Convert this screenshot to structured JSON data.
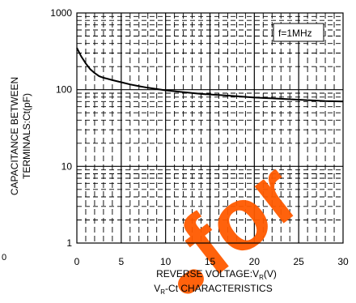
{
  "chart_data": {
    "type": "line",
    "title": "V_R-Ct CHARACTERISTICS",
    "xlabel": "REVERSE VOLTAGE:V_R(V)",
    "ylabel": [
      "CAPACITANCE BETWEEN",
      "TERMINALS:Ct(pF)"
    ],
    "xlim": [
      0,
      30
    ],
    "ylim": [
      1,
      1000
    ],
    "y_scale": "log",
    "x_ticks": [
      "0",
      "5",
      "10",
      "15",
      "20",
      "25",
      "30"
    ],
    "y_ticks": [
      "1",
      "10",
      "100",
      "1000"
    ],
    "grid": true,
    "annotations": [
      "f=1MHz"
    ],
    "series": [
      {
        "x": [
          0,
          0.5,
          1,
          1.5,
          2,
          2.5,
          3,
          3.5,
          4,
          5,
          6,
          7,
          8,
          9,
          10,
          12,
          14,
          16,
          18,
          20,
          22,
          24,
          26,
          28,
          30
        ],
        "y": [
          350,
          270,
          220,
          185,
          165,
          150,
          143,
          138,
          133,
          125,
          117,
          111,
          106,
          102,
          98,
          93,
          88,
          85,
          82,
          79,
          77,
          75,
          73,
          71,
          70
        ]
      }
    ]
  },
  "watermark_text": "for",
  "stray_label": "0",
  "colors": {
    "curve": "#000000",
    "grid": "#000000",
    "watermark": "#ff5a00"
  }
}
